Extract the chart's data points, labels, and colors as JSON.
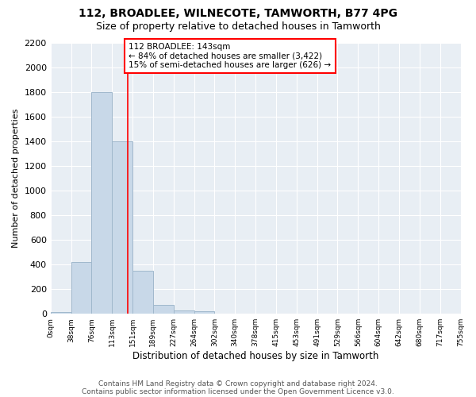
{
  "title": "112, BROADLEE, WILNECOTE, TAMWORTH, B77 4PG",
  "subtitle": "Size of property relative to detached houses in Tamworth",
  "xlabel": "Distribution of detached houses by size in Tamworth",
  "ylabel": "Number of detached properties",
  "bin_labels": [
    "0sqm",
    "38sqm",
    "76sqm",
    "113sqm",
    "151sqm",
    "189sqm",
    "227sqm",
    "264sqm",
    "302sqm",
    "340sqm",
    "378sqm",
    "415sqm",
    "453sqm",
    "491sqm",
    "529sqm",
    "566sqm",
    "604sqm",
    "642sqm",
    "680sqm",
    "717sqm",
    "755sqm"
  ],
  "bar_values": [
    15,
    420,
    1800,
    1400,
    350,
    75,
    30,
    20,
    0,
    0,
    0,
    0,
    0,
    0,
    0,
    0,
    0,
    0,
    0,
    0
  ],
  "bar_color": "#c8d8e8",
  "bar_edgecolor": "#a0b8cc",
  "property_line_x": 143,
  "bin_width": 38,
  "annotation_text": "112 BROADLEE: 143sqm\n← 84% of detached houses are smaller (3,422)\n15% of semi-detached houses are larger (626) →",
  "annotation_box_color": "white",
  "annotation_box_edgecolor": "red",
  "vline_color": "red",
  "ylim": [
    0,
    2200
  ],
  "yticks": [
    0,
    200,
    400,
    600,
    800,
    1000,
    1200,
    1400,
    1600,
    1800,
    2000,
    2200
  ],
  "background_color": "#e8eef4",
  "footer_line1": "Contains HM Land Registry data © Crown copyright and database right 2024.",
  "footer_line2": "Contains public sector information licensed under the Open Government Licence v3.0.",
  "title_fontsize": 10,
  "subtitle_fontsize": 9,
  "annotation_fontsize": 7.5,
  "ylabel_fontsize": 8,
  "xlabel_fontsize": 8.5,
  "footer_fontsize": 6.5,
  "ytick_fontsize": 8,
  "xtick_fontsize": 6.5
}
